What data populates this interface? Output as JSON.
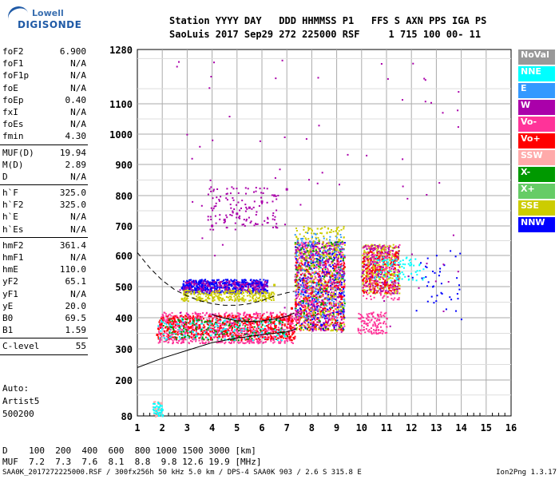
{
  "logo": {
    "line1": "Lowell",
    "line2": "DIGISONDE"
  },
  "header": {
    "line1": "Station YYYY DAY   DDD HHMMSS P1   FFS S AXN PPS IGA PS",
    "line2": "SaoLuis 2017 Sep29 272 225000 RSF     1 715 100 00- 11"
  },
  "params": [
    {
      "group": [
        {
          "k": "foF2",
          "v": "6.900"
        },
        {
          "k": "foF1",
          "v": "N/A"
        },
        {
          "k": "foF1p",
          "v": "N/A"
        },
        {
          "k": "foE",
          "v": "N/A"
        },
        {
          "k": "foEp",
          "v": "0.40"
        },
        {
          "k": "fxI",
          "v": "N/A"
        },
        {
          "k": "foEs",
          "v": "N/A"
        },
        {
          "k": "fmin",
          "v": "4.30"
        }
      ]
    },
    {
      "group": [
        {
          "k": "MUF(D)",
          "v": "19.94"
        },
        {
          "k": "M(D)",
          "v": "2.89"
        },
        {
          "k": "D",
          "v": "N/A"
        }
      ]
    },
    {
      "group": [
        {
          "k": "h`F",
          "v": "325.0"
        },
        {
          "k": "h`F2",
          "v": "325.0"
        },
        {
          "k": "h`E",
          "v": "N/A"
        },
        {
          "k": "h`Es",
          "v": "N/A"
        }
      ]
    },
    {
      "group": [
        {
          "k": "hmF2",
          "v": "361.4"
        },
        {
          "k": "hmF1",
          "v": "N/A"
        },
        {
          "k": "hmE",
          "v": "110.0"
        },
        {
          "k": "yF2",
          "v": "65.1"
        },
        {
          "k": "yF1",
          "v": "N/A"
        },
        {
          "k": "yE",
          "v": "20.0"
        },
        {
          "k": "B0",
          "v": "69.5"
        },
        {
          "k": "B1",
          "v": "1.59"
        }
      ]
    },
    {
      "group": [
        {
          "k": "C-level",
          "v": "55"
        }
      ]
    }
  ],
  "auto": {
    "line1": "Auto:",
    "line2": "Artist5",
    "line3": "500200"
  },
  "legend": [
    {
      "label": "NoVal",
      "color": "#999999"
    },
    {
      "label": "NNE",
      "color": "#00ffff"
    },
    {
      "label": "E",
      "color": "#3399ff"
    },
    {
      "label": "W",
      "color": "#aa00aa"
    },
    {
      "label": "Vo-",
      "color": "#ff3399"
    },
    {
      "label": "Vo+",
      "color": "#ff0000"
    },
    {
      "label": "SSW",
      "color": "#ffaaaa"
    },
    {
      "label": "X-",
      "color": "#009900"
    },
    {
      "label": "X+",
      "color": "#66cc66"
    },
    {
      "label": "SSE",
      "color": "#cccc00"
    },
    {
      "label": "NNW",
      "color": "#0000ff"
    }
  ],
  "bottom": {
    "line1": "D    100  200  400  600  800 1000 1500 3000 [km]",
    "line2": "MUF  7.2  7.3  7.6  8.1  8.8  9.8 12.6 19.9 [MHz]"
  },
  "footer": "SAA0K_2017272225000.RSF / 300fx256h 50 kHz 5.0 km / DPS-4 SAA0K 903 / 2.6 S 315.8 E",
  "version": "Ion2Png 1.3.17",
  "chart_data": {
    "type": "scatter",
    "title": "",
    "xlabel": "",
    "ylabel": "",
    "xlim": [
      1,
      16
    ],
    "ylim": [
      80,
      1280
    ],
    "x_ticks": [
      "1",
      "2",
      "3",
      "4",
      "5",
      "6",
      "7",
      "8",
      "9",
      "10",
      "11",
      "12",
      "13",
      "14",
      "15",
      "16"
    ],
    "y_ticks": [
      "80",
      "200",
      "300",
      "400",
      "500",
      "600",
      "700",
      "800",
      "900",
      "1000",
      "1100",
      "1280"
    ],
    "grid": true,
    "series": [
      {
        "name": "NNW",
        "color": "#0000ff",
        "x": [
          2.8,
          3.2,
          3.6,
          4.0,
          4.5,
          5.0,
          5.5,
          6.0
        ],
        "y": [
          495,
          500,
          505,
          510,
          512,
          510,
          508,
          505
        ]
      },
      {
        "name": "Vo+",
        "color": "#ff0000",
        "x": [
          1.8,
          2.5,
          3.5,
          4.5,
          5.5,
          6.2,
          6.8,
          7.2
        ],
        "y": [
          345,
          355,
          370,
          380,
          385,
          395,
          410,
          430
        ]
      },
      {
        "name": "SSE",
        "color": "#cccc00",
        "x": [
          2.8,
          3.5,
          4.5,
          5.5,
          6.5,
          7.5,
          8.5,
          9.0,
          10.5,
          11.0
        ],
        "y": [
          460,
          465,
          480,
          490,
          505,
          560,
          600,
          620,
          560,
          540
        ]
      },
      {
        "name": "W",
        "color": "#aa00aa",
        "x": [
          4.0,
          4.5,
          5.0,
          5.5,
          6.0,
          6.5,
          7.0
        ],
        "y": [
          700,
          720,
          740,
          760,
          780,
          800,
          820
        ]
      },
      {
        "name": "Vo-",
        "color": "#ff3399",
        "x": [
          7.5,
          8.0,
          8.5,
          9.0,
          10.5,
          11.0
        ],
        "y": [
          400,
          450,
          500,
          550,
          600,
          560
        ]
      }
    ],
    "curves": [
      {
        "name": "",
        "style": "solid",
        "x": [
          1,
          2,
          3,
          4,
          5,
          6,
          7,
          7.4
        ],
        "y": [
          240,
          270,
          295,
          320,
          335,
          345,
          355,
          365
        ]
      },
      {
        "name": "",
        "style": "dashed",
        "x": [
          1,
          1.5,
          2,
          2.5,
          3,
          3.5,
          4,
          4.5,
          5,
          5.5,
          6,
          6.5,
          7,
          7.3
        ],
        "y": [
          610,
          560,
          520,
          490,
          470,
          455,
          445,
          440,
          440,
          445,
          455,
          470,
          480,
          485
        ]
      },
      {
        "name": "",
        "style": "solid",
        "x": [
          4.0,
          4.5,
          5.0,
          5.5,
          6.0,
          6.5,
          7.0,
          7.3
        ],
        "y": [
          410,
          398,
          390,
          388,
          390,
          395,
          405,
          415
        ]
      }
    ]
  }
}
